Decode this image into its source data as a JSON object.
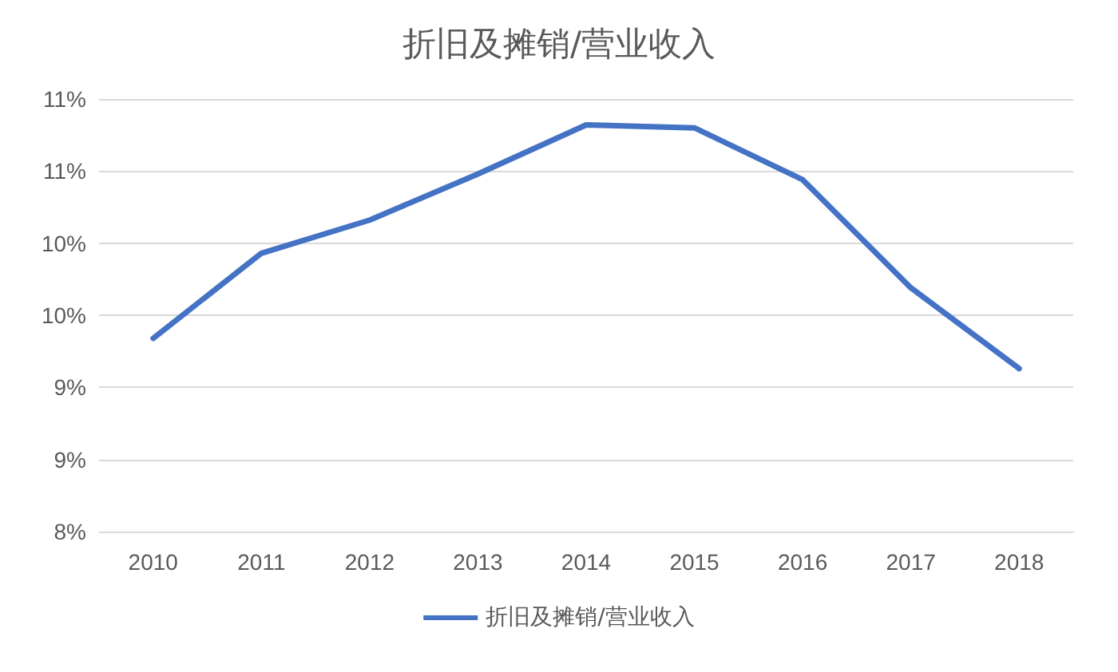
{
  "chart_data": {
    "type": "line",
    "title": "折旧及摊销/营业收入",
    "categories": [
      "2010",
      "2011",
      "2012",
      "2013",
      "2014",
      "2015",
      "2016",
      "2017",
      "2018"
    ],
    "series": [
      {
        "name": "折旧及摊销/营业收入",
        "color": "#4472c4",
        "values": [
          9.34,
          9.93,
          10.16,
          10.48,
          10.82,
          10.8,
          10.44,
          9.69,
          9.13
        ]
      }
    ],
    "ylim": [
      8,
      11
    ],
    "yticks": [
      {
        "value": 8,
        "label": "8%"
      },
      {
        "value": 8.5,
        "label": "9%"
      },
      {
        "value": 9,
        "label": "9%"
      },
      {
        "value": 9.5,
        "label": "10%"
      },
      {
        "value": 10,
        "label": "10%"
      },
      {
        "value": 10.5,
        "label": "11%"
      },
      {
        "value": 11,
        "label": "11%"
      }
    ],
    "grid": "y",
    "legend": "bottom",
    "marker": "none",
    "line_style": "solid"
  }
}
